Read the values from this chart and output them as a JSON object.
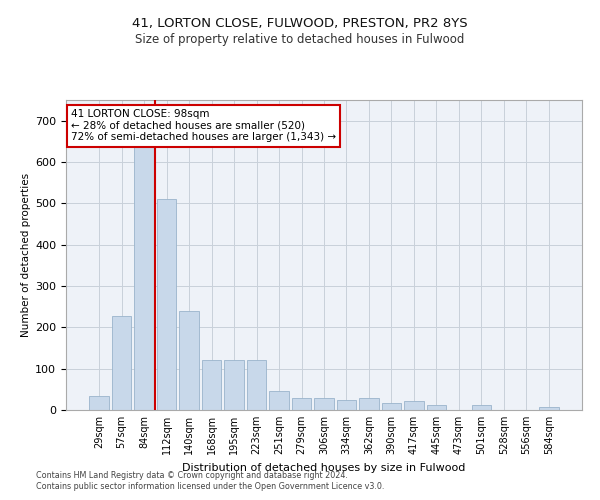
{
  "title": "41, LORTON CLOSE, FULWOOD, PRESTON, PR2 8YS",
  "subtitle": "Size of property relative to detached houses in Fulwood",
  "xlabel": "Distribution of detached houses by size in Fulwood",
  "ylabel": "Number of detached properties",
  "categories": [
    "29sqm",
    "57sqm",
    "84sqm",
    "112sqm",
    "140sqm",
    "168sqm",
    "195sqm",
    "223sqm",
    "251sqm",
    "279sqm",
    "306sqm",
    "334sqm",
    "362sqm",
    "390sqm",
    "417sqm",
    "445sqm",
    "473sqm",
    "501sqm",
    "528sqm",
    "556sqm",
    "584sqm"
  ],
  "values": [
    35,
    228,
    670,
    510,
    240,
    120,
    120,
    120,
    45,
    30,
    28,
    25,
    28,
    18,
    22,
    12,
    0,
    12,
    0,
    0,
    8
  ],
  "bar_color": "#c8d8ea",
  "bar_edge_color": "#9ab4cc",
  "red_line_x": 2.5,
  "annotation_title": "41 LORTON CLOSE: 98sqm",
  "annotation_line1": "← 28% of detached houses are smaller (520)",
  "annotation_line2": "72% of semi-detached houses are larger (1,343) →",
  "annotation_box_color": "#ffffff",
  "annotation_border_color": "#cc0000",
  "ylim": [
    0,
    750
  ],
  "yticks": [
    0,
    100,
    200,
    300,
    400,
    500,
    600,
    700
  ],
  "grid_color": "#c8d0da",
  "footer_line1": "Contains HM Land Registry data © Crown copyright and database right 2024.",
  "footer_line2": "Contains public sector information licensed under the Open Government Licence v3.0.",
  "background_color": "#eef2f8"
}
